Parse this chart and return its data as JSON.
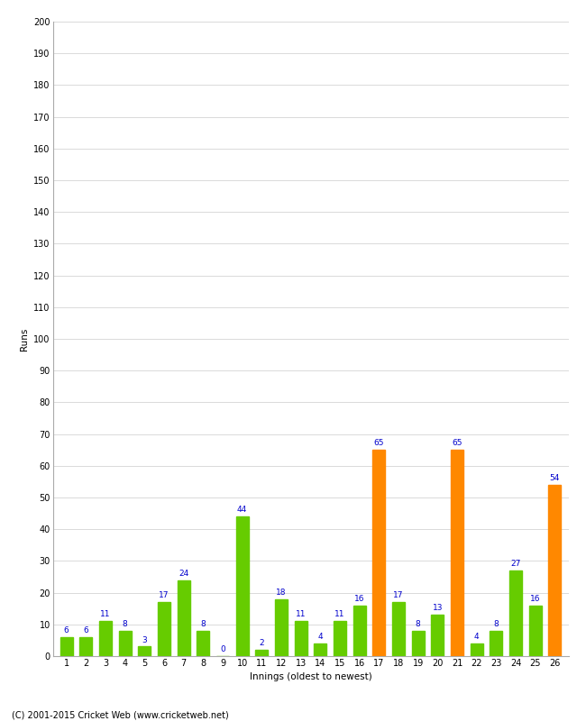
{
  "xlabel": "Innings (oldest to newest)",
  "ylabel": "Runs",
  "values": [
    6,
    6,
    11,
    8,
    3,
    17,
    24,
    8,
    0,
    44,
    2,
    18,
    11,
    4,
    11,
    16,
    65,
    17,
    8,
    13,
    65,
    4,
    8,
    27,
    16,
    54
  ],
  "innings": [
    1,
    2,
    3,
    4,
    5,
    6,
    7,
    8,
    9,
    10,
    11,
    12,
    13,
    14,
    15,
    16,
    17,
    18,
    19,
    20,
    21,
    22,
    23,
    24,
    25,
    26
  ],
  "bar_colors": [
    "#66cc00",
    "#66cc00",
    "#66cc00",
    "#66cc00",
    "#66cc00",
    "#66cc00",
    "#66cc00",
    "#66cc00",
    "#66cc00",
    "#66cc00",
    "#66cc00",
    "#66cc00",
    "#66cc00",
    "#66cc00",
    "#66cc00",
    "#66cc00",
    "#ff8800",
    "#66cc00",
    "#66cc00",
    "#66cc00",
    "#ff8800",
    "#66cc00",
    "#66cc00",
    "#66cc00",
    "#66cc00",
    "#ff8800"
  ],
  "ylim": [
    0,
    200
  ],
  "yticks": [
    0,
    10,
    20,
    30,
    40,
    50,
    60,
    70,
    80,
    90,
    100,
    110,
    120,
    130,
    140,
    150,
    160,
    170,
    180,
    190,
    200
  ],
  "label_color": "#0000cc",
  "label_fontsize": 6.5,
  "axis_label_fontsize": 7.5,
  "tick_fontsize": 7,
  "footer": "(C) 2001-2015 Cricket Web (www.cricketweb.net)",
  "bg_color": "#ffffff",
  "grid_color": "#cccccc",
  "bar_width": 0.65
}
